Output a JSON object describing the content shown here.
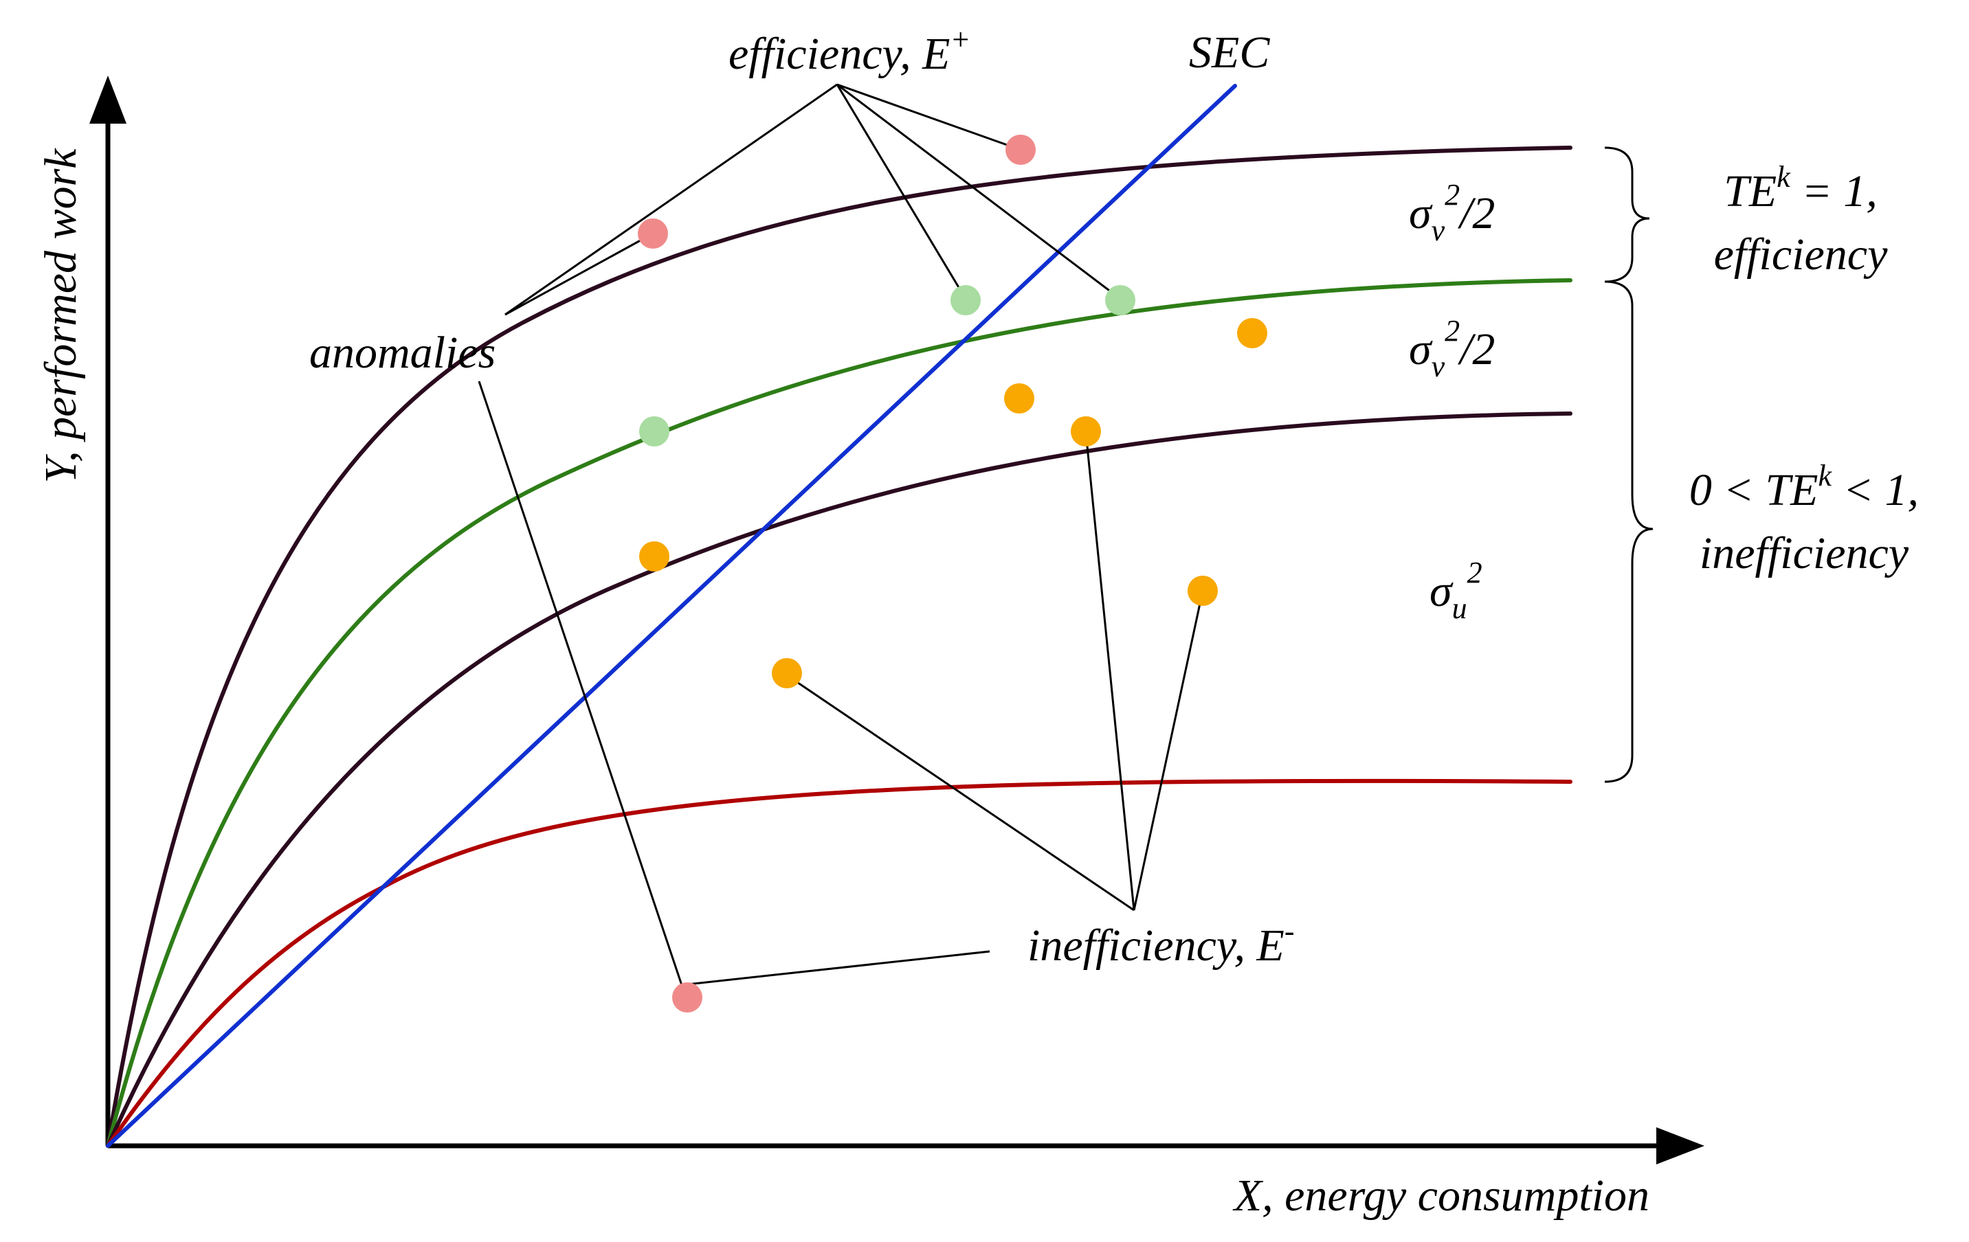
{
  "colors": {
    "outer_frontier": "#2a0a1e",
    "middle_frontier": "#2e7d17",
    "inner_frontier": "#2a0a1e",
    "lower_curve": "#b00000",
    "sec_line": "#1030d0",
    "anomaly_point": "#f08a8a",
    "efficiency_point": "#a8dca0",
    "inefficiency_point": "#f8a800"
  },
  "axes": {
    "y_label": "Y, performed work",
    "x_label": "X, energy consumption"
  },
  "labels": {
    "sec": "SEC",
    "efficiency_prefix": "efficiency, E",
    "efficiency_sup": "+",
    "anomalies": "anomalies",
    "inefficiency_prefix": "inefficiency, E",
    "inefficiency_sup": "-",
    "sigma_v_band1": {
      "base": "σ",
      "sub": "v",
      "sup": "2",
      "tail": "/2"
    },
    "sigma_v_band2": {
      "base": "σ",
      "sub": "v",
      "sup": "2",
      "tail": "/2"
    },
    "sigma_u": {
      "base": "σ",
      "sub": "u",
      "sup": "2"
    },
    "te_efficient_prefix": "TE",
    "te_efficient_sup": "k",
    "te_efficient_tail": " = 1,",
    "te_efficient_line2": "efficiency",
    "te_inefficient_prefix": "0 < TE",
    "te_inefficient_sup": "k",
    "te_inefficient_tail": " < 1,",
    "te_inefficient_line2": "inefficiency"
  }
}
